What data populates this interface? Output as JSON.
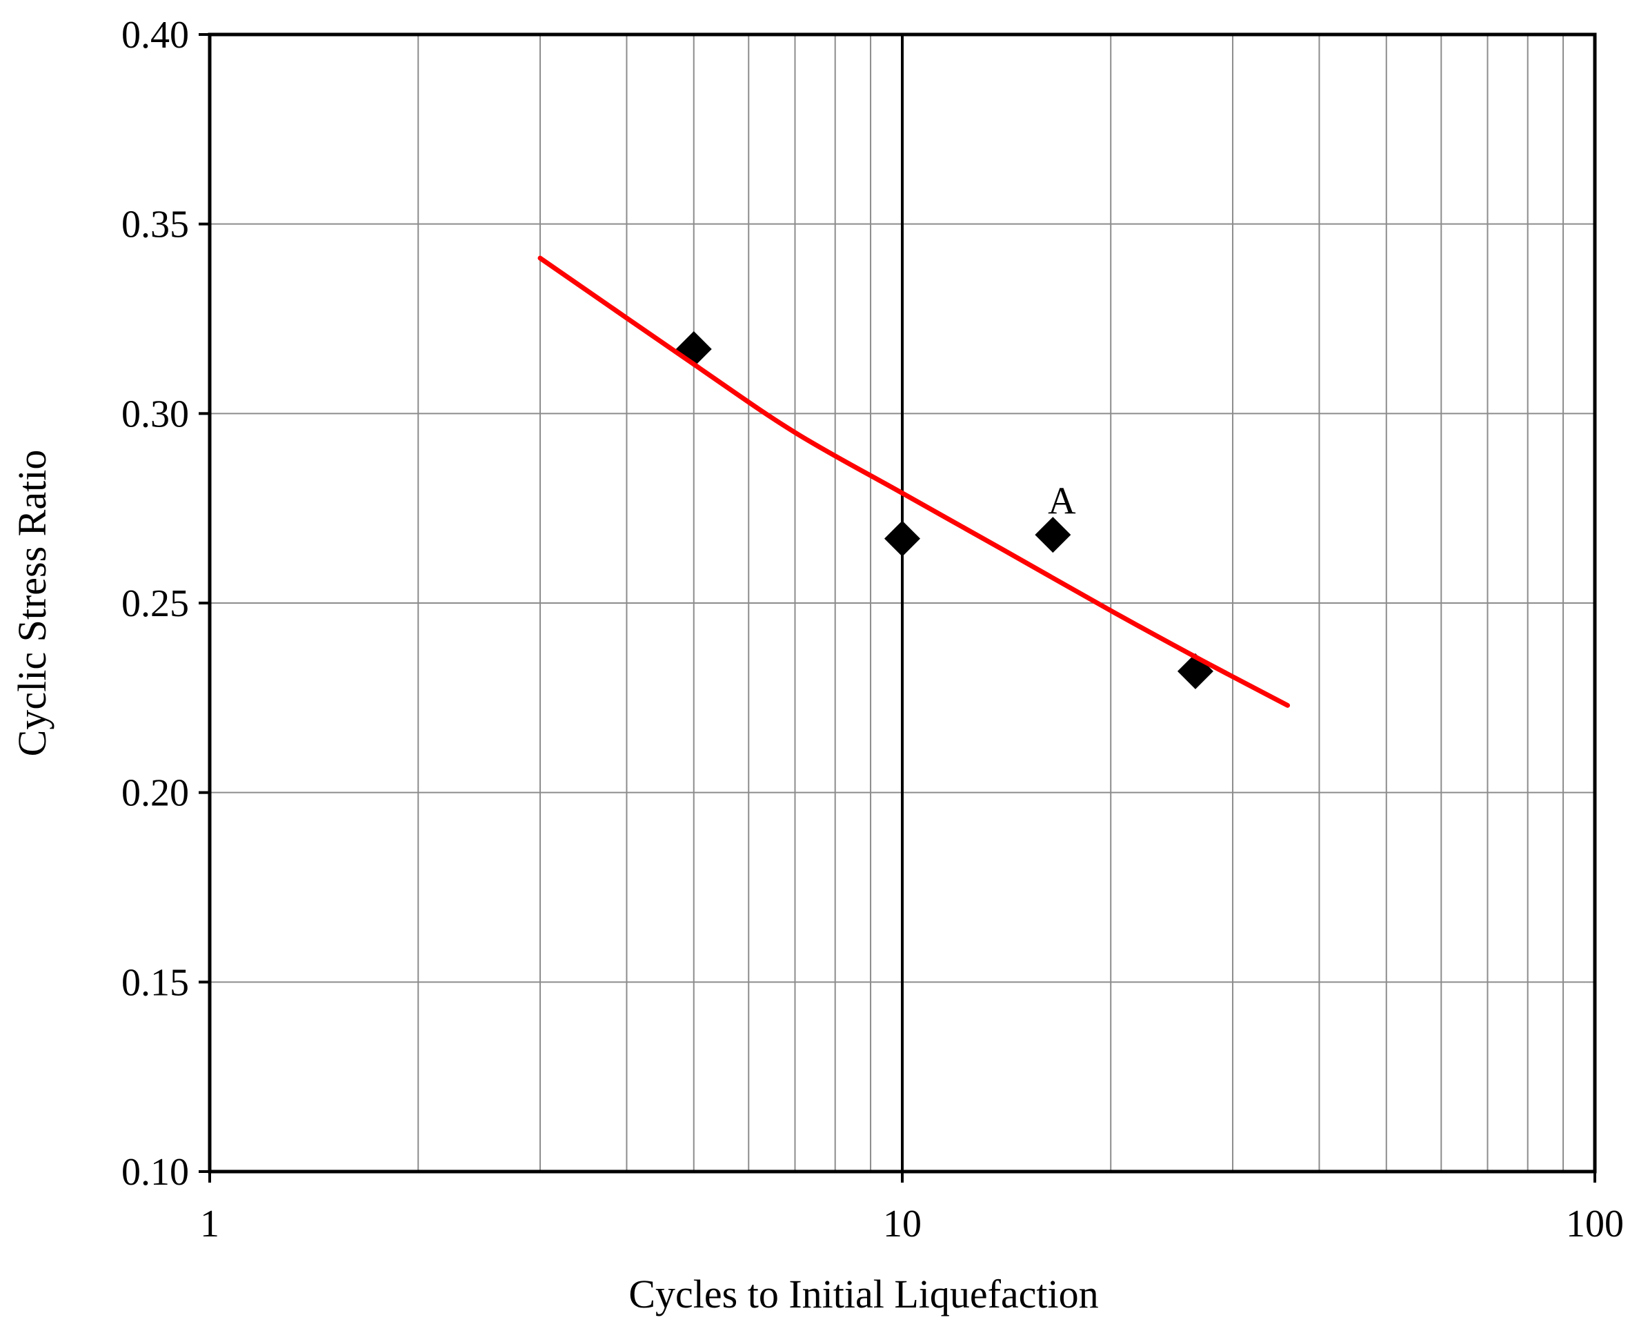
{
  "chart_data": {
    "type": "scatter",
    "title": "",
    "xlabel": "Cycles to Initial Liquefaction",
    "ylabel": "Cyclic Stress Ratio",
    "x_scale": "log",
    "xlim": [
      1,
      100
    ],
    "ylim": [
      0.1,
      0.4
    ],
    "x_tick_labels": [
      "1",
      "10",
      "100"
    ],
    "y_tick_labels": [
      "0.10",
      "0.15",
      "0.20",
      "0.25",
      "0.30",
      "0.35",
      "0.40"
    ],
    "grid": true,
    "legend": "none",
    "series": [
      {
        "marker": "diamond",
        "color": "#000000",
        "points": [
          {
            "x": 5.0,
            "y": 0.317
          },
          {
            "x": 10.0,
            "y": 0.267
          },
          {
            "x": 16.5,
            "y": 0.268
          },
          {
            "x": 26.5,
            "y": 0.232
          }
        ]
      },
      {
        "kind": "fit-line",
        "color": "#ff0000",
        "points": [
          {
            "x": 3.0,
            "y": 0.341
          },
          {
            "x": 5.0,
            "y": 0.313
          },
          {
            "x": 7.0,
            "y": 0.295
          },
          {
            "x": 10.0,
            "y": 0.279
          },
          {
            "x": 14.0,
            "y": 0.264
          },
          {
            "x": 20.0,
            "y": 0.248
          },
          {
            "x": 27.0,
            "y": 0.235
          },
          {
            "x": 36.0,
            "y": 0.223
          }
        ]
      }
    ],
    "annotations": [
      {
        "text": "A",
        "x": 17.0,
        "y": 0.277
      }
    ]
  }
}
